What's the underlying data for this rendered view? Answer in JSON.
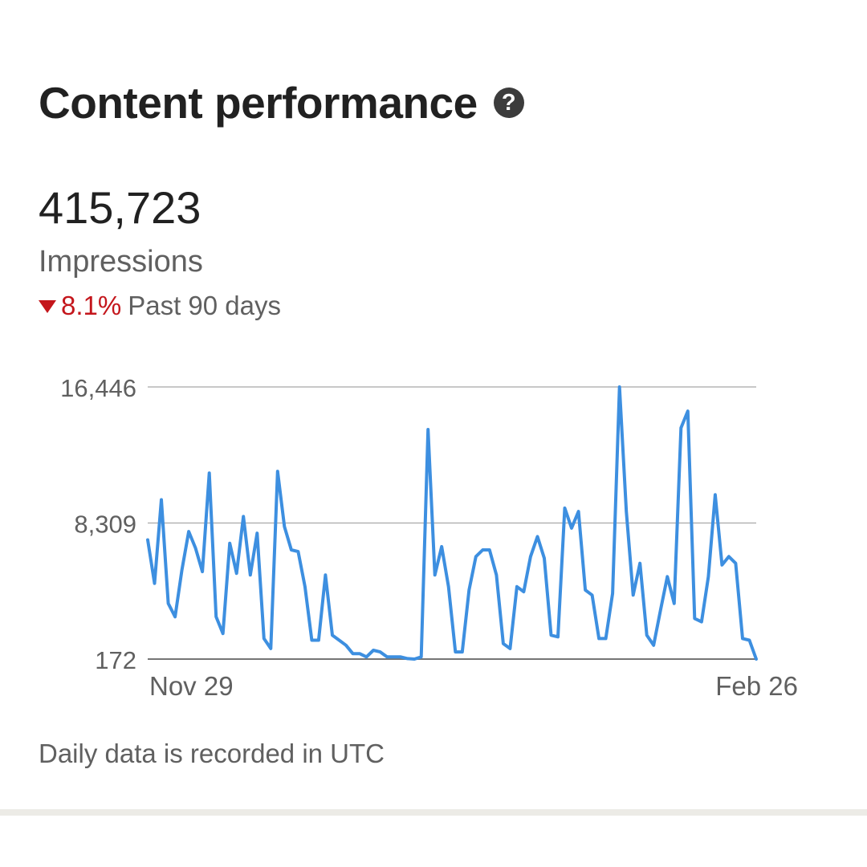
{
  "header": {
    "title": "Content performance",
    "help_icon": "help-icon"
  },
  "summary": {
    "total": "415,723",
    "metric": "Impressions",
    "change_icon": "triangle-down-icon",
    "change": "8.1%",
    "period": "Past 90 days"
  },
  "colors": {
    "line": "#3d8fe0",
    "negative": "#c4161c",
    "grid": "#9e9e9e"
  },
  "chart_data": {
    "type": "line",
    "title": "",
    "xlabel": "",
    "ylabel": "",
    "y_ticks": [
      "16,446",
      "8,309",
      "172"
    ],
    "ylim": [
      172,
      16446
    ],
    "x_ticks": [
      "Nov 29",
      "Feb 26"
    ],
    "grid": true,
    "series": [
      {
        "values": [
          7300,
          4700,
          9700,
          3500,
          2700,
          5500,
          7800,
          6800,
          5400,
          11300,
          2700,
          1700,
          7100,
          5300,
          8700,
          5200,
          7700,
          1400,
          800,
          11400,
          8100,
          6700,
          6600,
          4500,
          1300,
          1300,
          5200,
          1600,
          1300,
          1000,
          500,
          500,
          300,
          700,
          600,
          300,
          300,
          300,
          200,
          172,
          300,
          13900,
          5200,
          6900,
          4500,
          600,
          600,
          4300,
          6300,
          6700,
          6700,
          5200,
          1100,
          800,
          4500,
          4200,
          6300,
          7500,
          6200,
          1600,
          1500,
          9200,
          8000,
          9000,
          4300,
          4000,
          1400,
          1400,
          4100,
          16446,
          9000,
          4000,
          5900,
          1600,
          1000,
          3100,
          5100,
          3500,
          14000,
          15000,
          2600,
          2400,
          5100,
          10000,
          5800,
          6300,
          5900,
          1400,
          1300,
          172
        ]
      }
    ],
    "footnote": "Daily data is recorded in UTC"
  }
}
